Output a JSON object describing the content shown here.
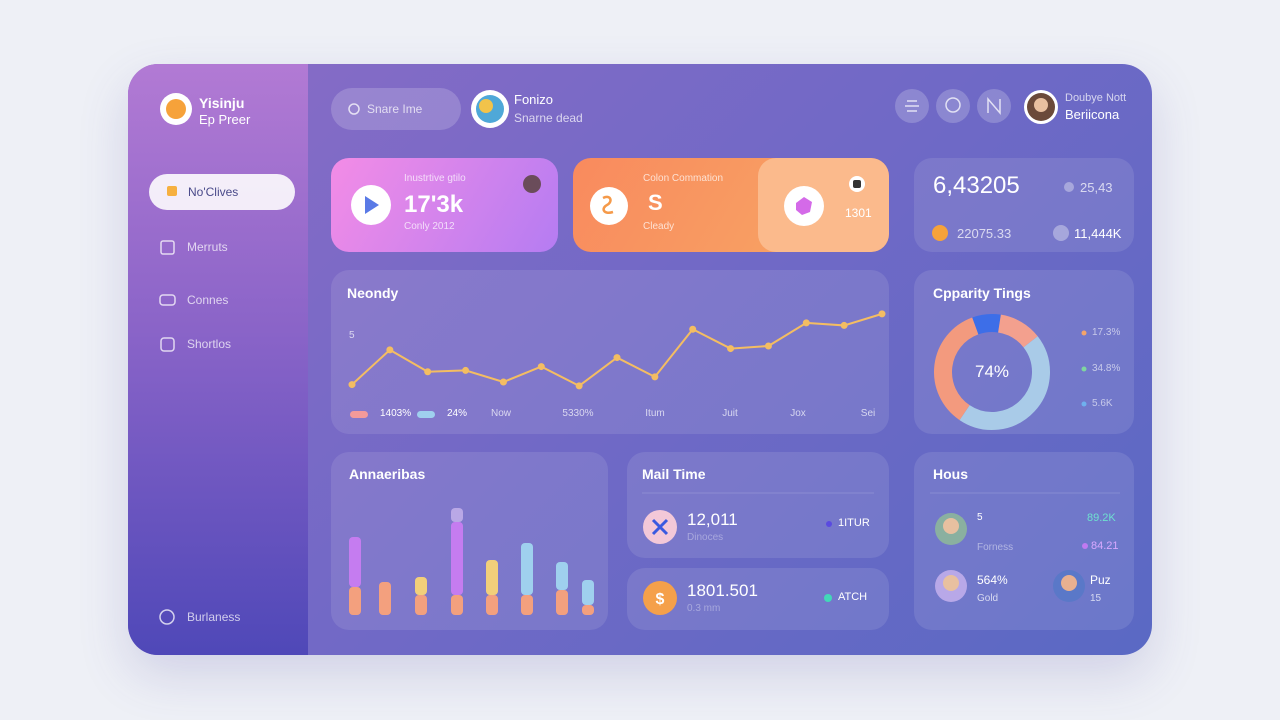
{
  "sidebar": {
    "brand": {
      "title": "Yisinju",
      "subtitle": "Ep Preer"
    },
    "nav": [
      "No'Clives",
      "Merruts",
      "Connes",
      "Shortlos"
    ],
    "footer": "Burlaness"
  },
  "header": {
    "search": "Snare Ime",
    "profile": {
      "name": "Fonizo",
      "subtitle": "Snarne dead"
    },
    "user": {
      "name": "Doubye Nott",
      "subtitle": "Beriicona"
    }
  },
  "card_pink": {
    "label": "Inustrtive gtilo",
    "value": "17'3k",
    "note": "Conly 2012"
  },
  "card_orange": {
    "label": "Colon Commation",
    "value": "S",
    "note": "Cleady",
    "side_value": "1301"
  },
  "stats": {
    "main": "6,43205",
    "secondary": "25,43",
    "left": "22075.33",
    "right": "11,444K"
  },
  "line_chart": {
    "type": "line",
    "title": "Neondy",
    "values": [
      1.2,
      3.9,
      2.2,
      2.3,
      1.4,
      2.6,
      1.1,
      3.3,
      1.8,
      5.5,
      4.0,
      4.2,
      6.0,
      5.8,
      6.7
    ],
    "color": "#f4bd62",
    "ylim": [
      0,
      7
    ],
    "yticks": [
      5
    ],
    "legend": [
      {
        "label": "1403%",
        "color": "#f39a9a"
      },
      {
        "label": "24%",
        "color": "#9fd0ee"
      }
    ],
    "x_labels": [
      "Now",
      "5330%",
      "Itum",
      "Juit",
      "Jox",
      "Sei"
    ]
  },
  "donut": {
    "type": "pie",
    "title": "Cpparity Tings",
    "center_label": "74%",
    "values": [
      8,
      12,
      45,
      35
    ],
    "colors": [
      "#3d6ee8",
      "#f3a08e",
      "#a9cbe8",
      "#f39a7e"
    ],
    "legend": [
      {
        "label": "17.3%",
        "color": "#f5a46a"
      },
      {
        "label": "34.8%",
        "color": "#7fd6a0"
      },
      {
        "label": "5.6K",
        "color": "#6fb0ee"
      }
    ]
  },
  "bar_chart": {
    "type": "bar",
    "title": "Annaeribas",
    "ylim": [
      0,
      110
    ],
    "series": [
      {
        "color": "#f3a07e",
        "values": [
          28,
          33,
          20,
          20,
          20,
          20,
          25,
          10
        ]
      },
      {
        "colors": [
          "#c57cf0",
          "#f3a07e",
          "#f2cf7a",
          "#c57cf0",
          "#f2cf7a",
          "#9fd0ee",
          "#9fd0ee",
          "#9fd0ee"
        ],
        "values": [
          50,
          0,
          18,
          73,
          35,
          52,
          28,
          25
        ]
      },
      {
        "color": "#b9a8e6",
        "values": [
          0,
          0,
          0,
          14,
          0,
          0,
          0,
          0
        ]
      }
    ]
  },
  "mail": {
    "title": "Mail Time",
    "rows": [
      {
        "value": "12,011",
        "note": "Dinoces",
        "tag": "1ITUR"
      },
      {
        "value": "1801.501",
        "note": "0.3 mm",
        "tag": "ATCH"
      }
    ]
  },
  "hous": {
    "title": "Hous",
    "rows": [
      {
        "name": "5",
        "note": "Forness",
        "a": "89.2K",
        "b": "84.21"
      },
      {
        "name": "564%",
        "note": "Gold"
      },
      {
        "name": "Puz",
        "note": "15"
      }
    ]
  }
}
